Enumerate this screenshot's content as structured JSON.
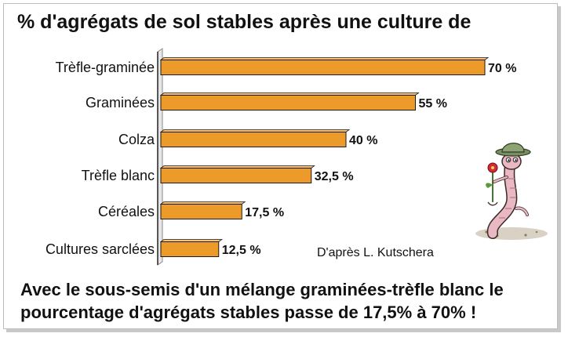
{
  "title": "% d'agrégats de sol stables après une culture de",
  "credit": "D'après L. Kutschera",
  "caption_line1": "Avec le sous-semis d'un mélange graminées-trèfle blanc le",
  "caption_line2": "pourcentage d'agrégats stables passe de 17,5% à 70% !",
  "colors": {
    "bar": "#ec9b2b",
    "bar_edge": "#1a1a1a",
    "axis_side": "#8a8a8a"
  },
  "chart_data": {
    "type": "bar",
    "orientation": "horizontal",
    "title": "% d'agrégats de sol stables après une culture de",
    "categories": [
      "Trèfle-graminée",
      "Graminées",
      "Colza",
      "Trèfle blanc",
      "Céréales",
      "Cultures sarclées"
    ],
    "values": [
      70,
      55,
      40,
      32.5,
      17.5,
      12.5
    ],
    "value_labels": [
      "70 %",
      "55 %",
      "40 %",
      "32,5 %",
      "17,5 %",
      "12,5 %"
    ],
    "xlim": [
      0,
      70
    ],
    "grid": false
  }
}
